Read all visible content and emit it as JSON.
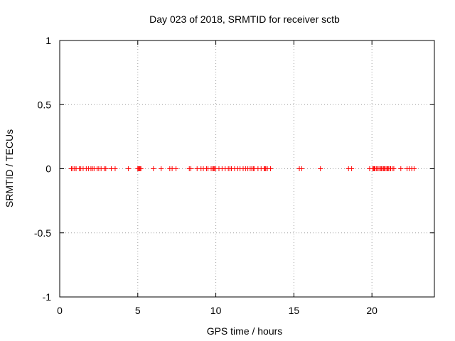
{
  "chart_data": {
    "type": "scatter",
    "title": "Day 023 of 2018, SRMTID for receiver sctb",
    "xlabel": "GPS time / hours",
    "ylabel": "SRMTID / TECUs",
    "xlim": [
      0,
      24
    ],
    "ylim": [
      -1,
      1
    ],
    "x_ticks": [
      0,
      5,
      10,
      15,
      20
    ],
    "x_tick_labels": [
      "0",
      "5",
      "10",
      "15",
      "20"
    ],
    "y_ticks": [
      1,
      0.5,
      0,
      -0.5,
      -1
    ],
    "y_tick_labels": [
      "1",
      "0.5",
      "0",
      "-0.5",
      "-1"
    ],
    "grid": true,
    "series": [
      {
        "name": "SRMTID",
        "color": "#ff0000",
        "marker": "plus",
        "x": [
          0.75,
          0.85,
          0.95,
          1.05,
          1.25,
          1.35,
          1.5,
          1.7,
          1.85,
          2.0,
          2.1,
          2.2,
          2.4,
          2.5,
          2.65,
          2.85,
          2.95,
          3.3,
          3.55,
          4.4,
          5.0,
          5.05,
          5.1,
          5.15,
          5.2,
          6.0,
          6.5,
          7.05,
          7.2,
          7.45,
          8.3,
          8.4,
          8.8,
          9.05,
          9.2,
          9.4,
          9.5,
          9.7,
          9.8,
          9.85,
          9.9,
          10.0,
          10.2,
          10.4,
          10.6,
          10.8,
          10.9,
          11.0,
          11.2,
          11.4,
          11.55,
          11.75,
          11.9,
          12.05,
          12.2,
          12.3,
          12.4,
          12.45,
          12.7,
          12.9,
          13.1,
          13.15,
          13.2,
          13.3,
          13.5,
          15.35,
          15.5,
          16.7,
          18.5,
          18.7,
          19.85,
          20.05,
          20.1,
          20.15,
          20.2,
          20.3,
          20.35,
          20.45,
          20.55,
          20.6,
          20.65,
          20.75,
          20.8,
          20.85,
          20.95,
          21.0,
          21.05,
          21.15,
          21.2,
          21.3,
          21.4,
          21.85,
          22.25,
          22.4,
          22.55,
          22.7
        ],
        "y": [
          0,
          0,
          0,
          0,
          0,
          0,
          0,
          0,
          0,
          0,
          0,
          0,
          0,
          0,
          0,
          0,
          0,
          0,
          0,
          0,
          0,
          0,
          0,
          0,
          0,
          0,
          0,
          0,
          0,
          0,
          0,
          0,
          0,
          0,
          0,
          0,
          0,
          0,
          0,
          0,
          0,
          0,
          0,
          0,
          0,
          0,
          0,
          0,
          0,
          0,
          0,
          0,
          0,
          0,
          0,
          0,
          0,
          0,
          0,
          0,
          0,
          0,
          0,
          0,
          0,
          0,
          0,
          0,
          0,
          0,
          0,
          0,
          0,
          0,
          0,
          0,
          0,
          0,
          0,
          0,
          0,
          0,
          0,
          0,
          0,
          0,
          0,
          0,
          0,
          0,
          0,
          0,
          0,
          0,
          0,
          0
        ]
      }
    ]
  }
}
